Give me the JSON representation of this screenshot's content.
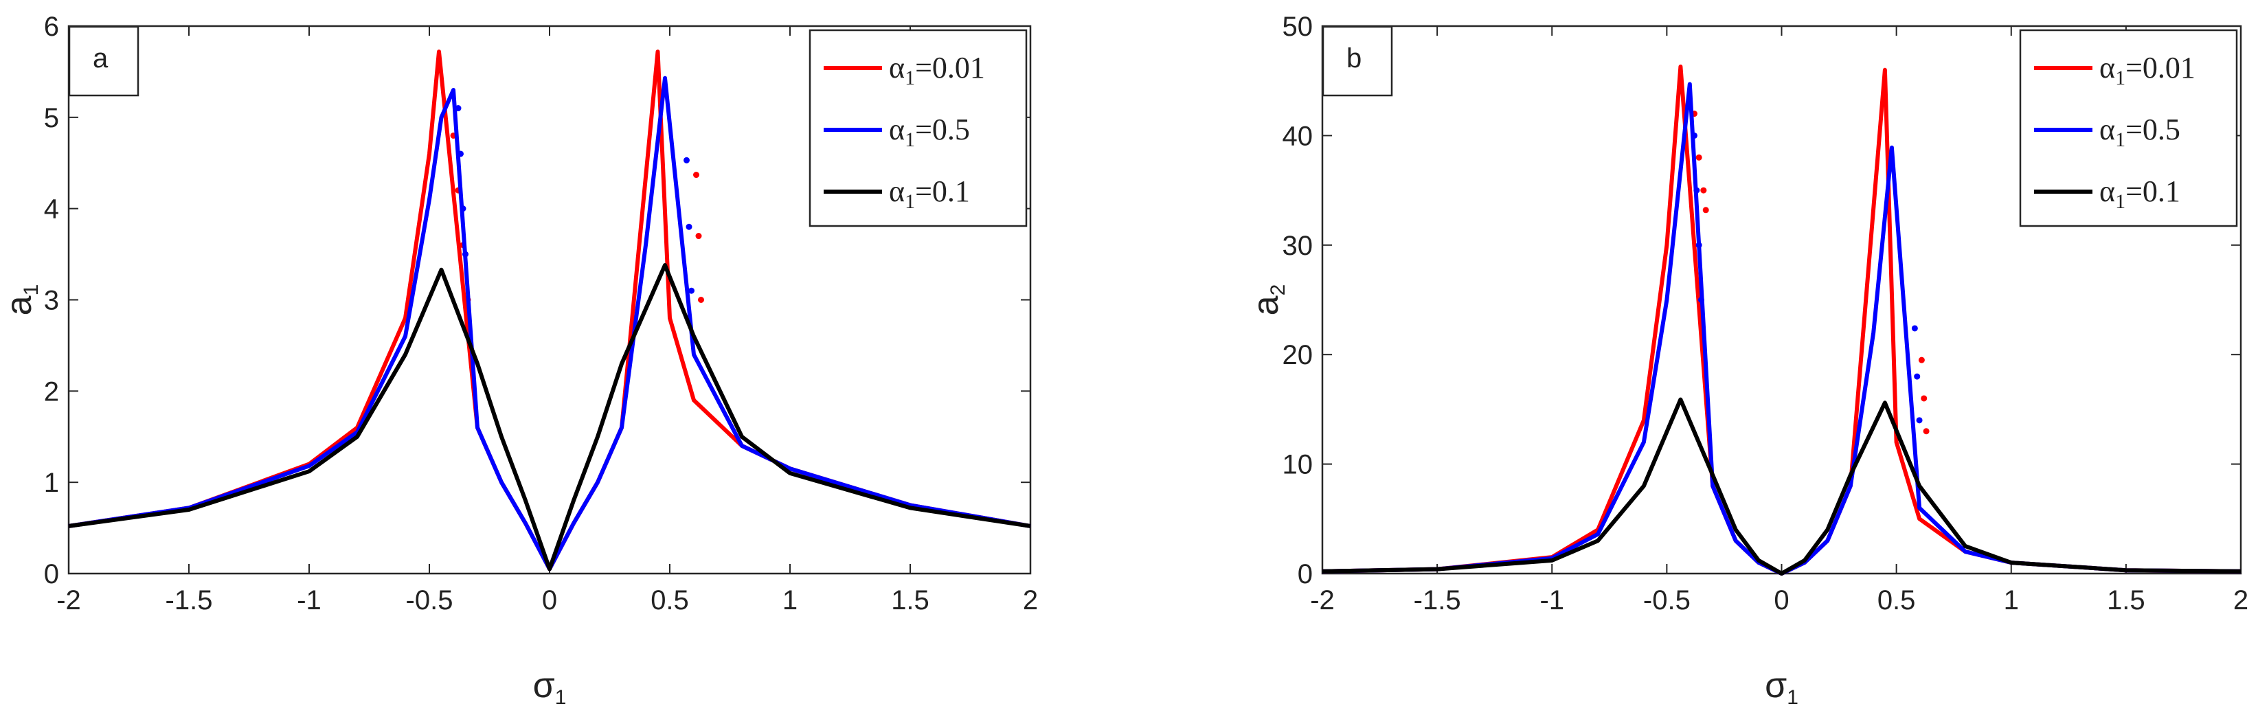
{
  "chart_data": [
    {
      "type": "line",
      "panel_label": "a",
      "xlabel": "σ1",
      "ylabel": "a1",
      "xlim": [
        -2,
        2
      ],
      "ylim": [
        0,
        6
      ],
      "xticks": [
        "-2",
        "-1.5",
        "-1",
        "-0.5",
        "0",
        "0.5",
        "1",
        "1.5",
        "2"
      ],
      "yticks": [
        "0",
        "1",
        "2",
        "3",
        "4",
        "5",
        "6"
      ],
      "legend_position": "top-right",
      "grid": false,
      "series": [
        {
          "name": "α1=0.01",
          "color": "#ff0000",
          "x": [
            -2,
            -1.5,
            -1,
            -0.8,
            -0.6,
            -0.5,
            -0.46,
            -0.3,
            -0.2,
            -0.1,
            0,
            0.1,
            0.2,
            0.3,
            0.45,
            0.5,
            0.6,
            0.8,
            1,
            1.5,
            2
          ],
          "y": [
            0.52,
            0.72,
            1.2,
            1.6,
            2.8,
            4.6,
            5.72,
            1.6,
            1.0,
            0.55,
            0.05,
            0.55,
            1.0,
            1.6,
            5.72,
            2.8,
            1.9,
            1.4,
            1.15,
            0.75,
            0.52
          ],
          "unstable_x": [
            -0.4,
            -0.38,
            -0.36,
            -0.34,
            -0.33
          ],
          "unstable_y": [
            4.8,
            4.2,
            3.6,
            3.0,
            2.5
          ],
          "jump_x": [
            0.61,
            0.62,
            0.63
          ],
          "jump_y": [
            4.37,
            3.7,
            3.0
          ]
        },
        {
          "name": "α1=0.5",
          "color": "#0000ff",
          "x": [
            -2,
            -1.5,
            -1,
            -0.8,
            -0.6,
            -0.5,
            -0.45,
            -0.4,
            -0.3,
            -0.2,
            -0.1,
            0,
            0.1,
            0.2,
            0.3,
            0.4,
            0.48,
            0.6,
            0.8,
            1,
            1.5,
            2
          ],
          "y": [
            0.52,
            0.72,
            1.18,
            1.55,
            2.6,
            4.1,
            5.0,
            5.3,
            1.6,
            1.0,
            0.55,
            0.05,
            0.55,
            1.0,
            1.6,
            3.6,
            5.43,
            2.4,
            1.4,
            1.15,
            0.75,
            0.52
          ],
          "unstable_x": [
            -0.38,
            -0.37,
            -0.36,
            -0.35
          ],
          "unstable_y": [
            5.1,
            4.6,
            4.0,
            3.5
          ],
          "jump_x": [
            0.57,
            0.58,
            0.59
          ],
          "jump_y": [
            4.53,
            3.8,
            3.1
          ]
        },
        {
          "name": "α1=0.1",
          "color": "#000000",
          "x": [
            -2,
            -1.5,
            -1,
            -0.8,
            -0.6,
            -0.45,
            -0.3,
            -0.2,
            -0.1,
            0,
            0.1,
            0.2,
            0.3,
            0.48,
            0.6,
            0.8,
            1,
            1.5,
            2
          ],
          "y": [
            0.52,
            0.7,
            1.12,
            1.5,
            2.4,
            3.33,
            2.3,
            1.5,
            0.8,
            0.05,
            0.8,
            1.5,
            2.3,
            3.38,
            2.6,
            1.5,
            1.1,
            0.72,
            0.52
          ]
        }
      ]
    },
    {
      "type": "line",
      "panel_label": "b",
      "xlabel": "σ1",
      "ylabel": "a2",
      "xlim": [
        -2,
        2
      ],
      "ylim": [
        0,
        50
      ],
      "xticks": [
        "-2",
        "-1.5",
        "-1",
        "-0.5",
        "0",
        "0.5",
        "1",
        "1.5",
        "2"
      ],
      "yticks": [
        "0",
        "10",
        "20",
        "30",
        "40",
        "50"
      ],
      "legend_position": "top-right",
      "grid": false,
      "series": [
        {
          "name": "α1=0.01",
          "color": "#ff0000",
          "x": [
            -2,
            -1.5,
            -1,
            -0.8,
            -0.6,
            -0.5,
            -0.44,
            -0.3,
            -0.2,
            -0.1,
            0,
            0.1,
            0.2,
            0.3,
            0.45,
            0.5,
            0.6,
            0.8,
            1,
            1.5,
            2
          ],
          "y": [
            0.2,
            0.4,
            1.5,
            4.0,
            14.0,
            30.0,
            46.3,
            8.0,
            3.0,
            1.0,
            0,
            1.0,
            3.0,
            8.0,
            46.0,
            12.0,
            5.0,
            2.0,
            1.0,
            0.3,
            0.2
          ],
          "unstable_x": [
            -0.38,
            -0.36,
            -0.34,
            -0.33
          ],
          "unstable_y": [
            42.0,
            38.0,
            35.0,
            33.2
          ],
          "jump_x": [
            0.61,
            0.62,
            0.63
          ],
          "jump_y": [
            19.5,
            16.0,
            13.0
          ]
        },
        {
          "name": "α1=0.5",
          "color": "#0000ff",
          "x": [
            -2,
            -1.5,
            -1,
            -0.8,
            -0.6,
            -0.5,
            -0.4,
            -0.3,
            -0.2,
            -0.1,
            0,
            0.1,
            0.2,
            0.3,
            0.4,
            0.48,
            0.6,
            0.8,
            1,
            1.5,
            2
          ],
          "y": [
            0.2,
            0.4,
            1.4,
            3.6,
            12.0,
            25.0,
            44.7,
            8.0,
            3.0,
            1.0,
            0,
            1.0,
            3.0,
            8.0,
            22.0,
            38.9,
            6.0,
            2.0,
            1.0,
            0.3,
            0.2
          ],
          "unstable_x": [
            -0.38,
            -0.37,
            -0.36,
            -0.35
          ],
          "unstable_y": [
            40.0,
            35.0,
            30.0,
            25.0
          ],
          "jump_x": [
            0.58,
            0.59,
            0.6
          ],
          "jump_y": [
            22.4,
            18.0,
            14.0
          ]
        },
        {
          "name": "α1=0.1",
          "color": "#000000",
          "x": [
            -2,
            -1.5,
            -1,
            -0.8,
            -0.6,
            -0.44,
            -0.3,
            -0.2,
            -0.1,
            0,
            0.1,
            0.2,
            0.3,
            0.45,
            0.6,
            0.8,
            1,
            1.5,
            2
          ],
          "y": [
            0.2,
            0.4,
            1.2,
            3.0,
            8.0,
            15.9,
            9.0,
            4.0,
            1.2,
            0,
            1.2,
            4.0,
            9.0,
            15.6,
            8.0,
            2.5,
            1.0,
            0.3,
            0.2
          ]
        }
      ]
    }
  ]
}
